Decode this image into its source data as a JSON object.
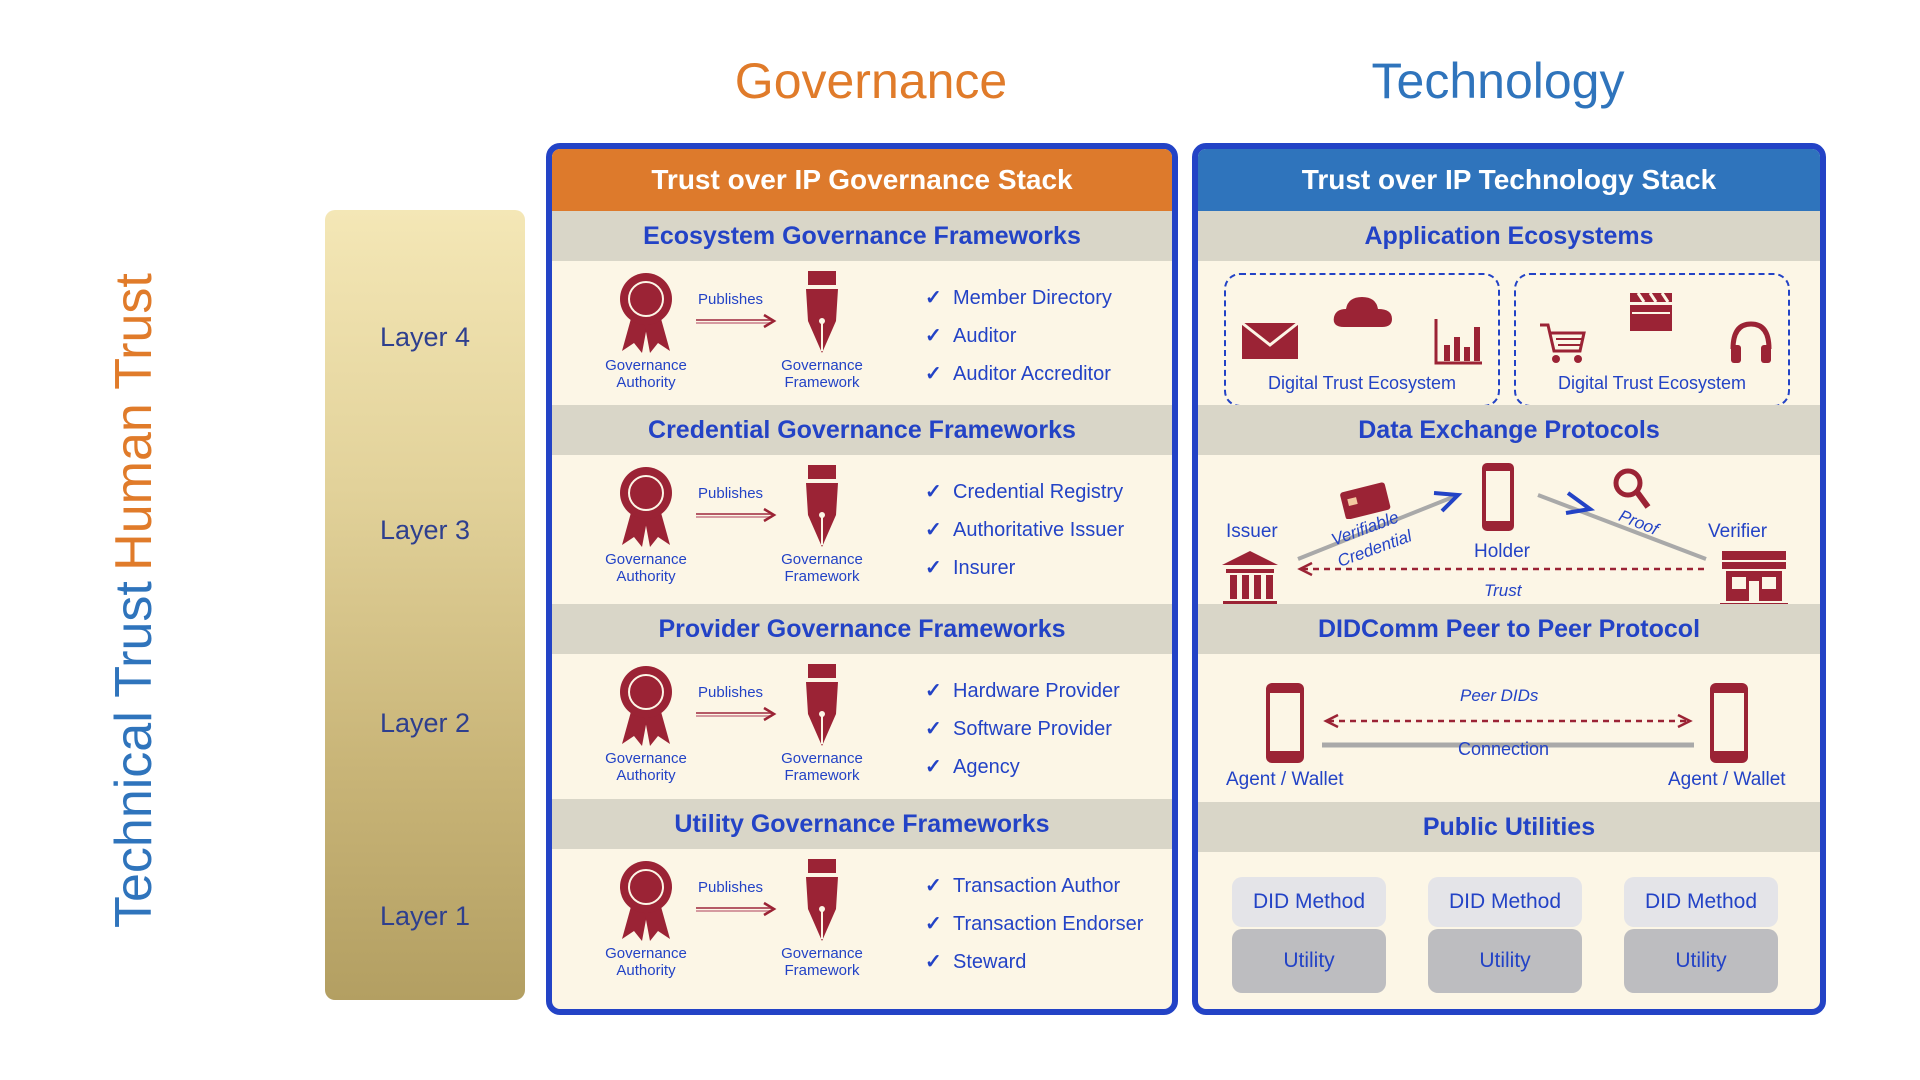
{
  "headings": {
    "governance": "Governance",
    "technology": "Technology"
  },
  "trust_labels": {
    "human": "Human Trust",
    "technical": "Technical Trust"
  },
  "layers": [
    "Layer 4",
    "Layer 3",
    "Layer 2",
    "Layer 1"
  ],
  "governance_stack": {
    "title": "Trust over IP Governance Stack",
    "authority_label": "Governance Authority",
    "framework_label": "Governance Framework",
    "publishes_label": "Publishes",
    "tick": "✓",
    "sections": [
      {
        "title": "Ecosystem Governance Frameworks",
        "items": [
          "Member Directory",
          "Auditor",
          "Auditor Accreditor"
        ]
      },
      {
        "title": "Credential Governance Frameworks",
        "items": [
          "Credential Registry",
          "Authoritative Issuer",
          "Insurer"
        ]
      },
      {
        "title": "Provider Governance Frameworks",
        "items": [
          "Hardware Provider",
          "Software Provider",
          "Agency"
        ]
      },
      {
        "title": "Utility Governance Frameworks",
        "items": [
          "Transaction Author",
          "Transaction Endorser",
          "Steward"
        ]
      }
    ]
  },
  "technology_stack": {
    "title": "Trust over IP Technology Stack",
    "application": {
      "title": "Application Ecosystems",
      "ecosystems": [
        "Digital Trust Ecosystem",
        "Digital Trust Ecosystem"
      ]
    },
    "data_exchange": {
      "title": "Data Exchange Protocols",
      "issuer": "Issuer",
      "holder": "Holder",
      "verifier": "Verifier",
      "verifiable": "Verifiable",
      "credential": "Credential",
      "proof": "Proof",
      "trust": "Trust"
    },
    "didcomm": {
      "title": "DIDComm Peer to Peer Protocol",
      "peer_dids": "Peer DIDs",
      "connection": "Connection",
      "agent_left": "Agent / Wallet",
      "agent_right": "Agent / Wallet"
    },
    "public_utilities": {
      "title": "Public Utilities",
      "did_methods": [
        "DID Method",
        "DID Method",
        "DID Method"
      ],
      "utilities": [
        "Utility",
        "Utility",
        "Utility"
      ]
    }
  },
  "colors": {
    "orange": "#E07B2A",
    "blue": "#2F74BC",
    "border_blue": "#2343C6",
    "maroon": "#9B2335",
    "cream": "#FCF6E6"
  }
}
